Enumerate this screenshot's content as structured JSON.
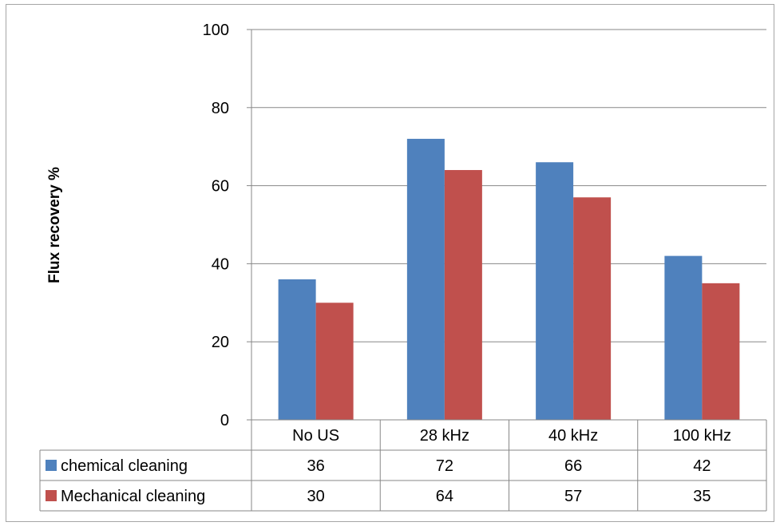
{
  "chart_data": {
    "type": "bar",
    "ylabel": "Flux recovery %",
    "ylim": [
      0,
      100
    ],
    "yticks": [
      0,
      20,
      40,
      60,
      80,
      100
    ],
    "grid": true,
    "categories": [
      "No US",
      "28 kHz",
      "40 kHz",
      "100 kHz"
    ],
    "series": [
      {
        "name": "chemical cleaning",
        "color": "#4f81bd",
        "values": [
          36,
          72,
          66,
          42
        ]
      },
      {
        "name": "Mechanical cleaning",
        "color": "#c0504d",
        "values": [
          30,
          64,
          57,
          35
        ]
      }
    ],
    "data_table": true
  }
}
